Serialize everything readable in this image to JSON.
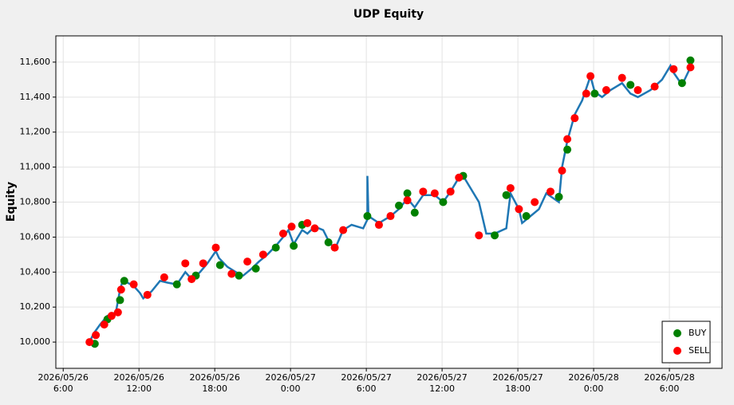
{
  "chart_data": {
    "type": "line",
    "title": "UDP Equity",
    "y_label": "Equity",
    "color": "#1f77b4",
    "grid": true,
    "legend": "lower right",
    "xlim": [
      "2026-05-26 05:25",
      "2026-05-28 10:10"
    ],
    "xticks": [
      {
        "value": "2026-05-26 06:00",
        "label": "2026/05/26\n6:00"
      },
      {
        "value": "2026-05-26 12:00",
        "label": "2026/05/26\n12:00"
      },
      {
        "value": "2026-05-26 18:00",
        "label": "2026/05/26\n18:00"
      },
      {
        "value": "2026-05-27 00:00",
        "label": "2026/05/27\n0:00"
      },
      {
        "value": "2026-05-27 06:00",
        "label": "2026/05/27\n6:00"
      },
      {
        "value": "2026-05-27 12:00",
        "label": "2026/05/27\n12:00"
      },
      {
        "value": "2026-05-27 18:00",
        "label": "2026/05/27\n18:00"
      },
      {
        "value": "2026-05-28 00:00",
        "label": "2026/05/28\n0:00"
      },
      {
        "value": "2026-05-28 06:00",
        "label": "2026/05/28\n6:00"
      }
    ],
    "ylim": [
      9850,
      11750
    ],
    "yticks": [
      {
        "value": 10000,
        "label": "10,000"
      },
      {
        "value": 10200,
        "label": "10,200"
      },
      {
        "value": 10400,
        "label": "10,400"
      },
      {
        "value": 10600,
        "label": "10,600"
      },
      {
        "value": 10800,
        "label": "10,800"
      },
      {
        "value": 11000,
        "label": "11,000"
      },
      {
        "value": 11200,
        "label": "11,200"
      },
      {
        "value": 11400,
        "label": "11,400"
      },
      {
        "value": 11600,
        "label": "11,600"
      }
    ],
    "x": [
      "2026-05-26 08:05",
      "2026-05-26 08:25",
      "2026-05-26 08:55",
      "2026-05-26 09:30",
      "2026-05-26 10:10",
      "2026-05-26 10:30",
      "2026-05-26 10:40",
      "2026-05-26 11:05",
      "2026-05-26 11:35",
      "2026-05-26 12:05",
      "2026-05-26 12:20",
      "2026-05-26 13:00",
      "2026-05-26 13:40",
      "2026-05-26 14:15",
      "2026-05-26 15:00",
      "2026-05-26 15:40",
      "2026-05-26 16:10",
      "2026-05-26 16:50",
      "2026-05-26 17:25",
      "2026-05-26 18:05",
      "2026-05-26 18:20",
      "2026-05-26 19:00",
      "2026-05-26 19:40",
      "2026-05-26 20:15",
      "2026-05-26 20:55",
      "2026-05-26 21:30",
      "2026-05-26 22:10",
      "2026-05-26 22:50",
      "2026-05-26 23:25",
      "2026-05-26 23:50",
      "2026-05-27 00:15",
      "2026-05-27 00:55",
      "2026-05-27 01:20",
      "2026-05-27 01:55",
      "2026-05-27 02:35",
      "2026-05-27 03:00",
      "2026-05-27 03:30",
      "2026-05-27 04:10",
      "2026-05-27 04:50",
      "2026-05-27 05:45",
      "2026-05-27 06:05",
      "2026-05-27 06:05",
      "2026-05-27 06:10",
      "2026-05-27 07:00",
      "2026-05-27 07:55",
      "2026-05-27 08:35",
      "2026-05-27 09:15",
      "2026-05-27 09:50",
      "2026-05-27 10:30",
      "2026-05-27 11:25",
      "2026-05-27 12:05",
      "2026-05-27 12:40",
      "2026-05-27 13:20",
      "2026-05-27 13:40",
      "2026-05-27 14:15",
      "2026-05-27 14:55",
      "2026-05-27 15:30",
      "2026-05-27 16:10",
      "2026-05-27 17:05",
      "2026-05-27 17:25",
      "2026-05-27 18:05",
      "2026-05-27 18:20",
      "2026-05-27 19:00",
      "2026-05-27 19:40",
      "2026-05-27 20:15",
      "2026-05-27 21:15",
      "2026-05-27 21:30",
      "2026-05-27 21:55",
      "2026-05-27 22:30",
      "2026-05-27 23:05",
      "2026-05-27 23:45",
      "2026-05-28 00:05",
      "2026-05-28 00:40",
      "2026-05-28 01:20",
      "2026-05-28 02:15",
      "2026-05-28 02:55",
      "2026-05-28 03:30",
      "2026-05-28 04:30",
      "2026-05-28 05:25",
      "2026-05-28 06:05",
      "2026-05-28 06:20",
      "2026-05-28 07:00",
      "2026-05-28 07:40"
    ],
    "values": [
      10000,
      10050,
      10100,
      10150,
      10170,
      10300,
      10340,
      10340,
      10320,
      10280,
      10250,
      10290,
      10350,
      10340,
      10330,
      10400,
      10360,
      10400,
      10450,
      10520,
      10480,
      10430,
      10400,
      10380,
      10420,
      10460,
      10500,
      10550,
      10600,
      10640,
      10560,
      10640,
      10620,
      10660,
      10640,
      10580,
      10530,
      10640,
      10670,
      10650,
      10700,
      10950,
      10720,
      10680,
      10720,
      10760,
      10820,
      10770,
      10840,
      10840,
      10800,
      10860,
      10940,
      10950,
      10880,
      10800,
      10620,
      10620,
      10650,
      10850,
      10760,
      10680,
      10720,
      10760,
      10850,
      10800,
      11000,
      11150,
      11300,
      11380,
      11520,
      11430,
      11400,
      11440,
      11480,
      11420,
      11400,
      11440,
      11500,
      11580,
      11540,
      11470,
      11570
    ],
    "markers": [
      {
        "name": "BUY",
        "color": "#008000",
        "x": [
          "2026-05-26 08:30",
          "2026-05-26 09:30",
          "2026-05-26 10:30",
          "2026-05-26 10:50",
          "2026-05-26 15:00",
          "2026-05-26 16:30",
          "2026-05-26 18:25",
          "2026-05-26 19:55",
          "2026-05-26 21:15",
          "2026-05-26 22:50",
          "2026-05-27 00:15",
          "2026-05-27 00:55",
          "2026-05-27 03:00",
          "2026-05-27 06:05",
          "2026-05-27 08:35",
          "2026-05-27 09:15",
          "2026-05-27 09:50",
          "2026-05-27 12:05",
          "2026-05-27 13:40",
          "2026-05-27 16:10",
          "2026-05-27 17:05",
          "2026-05-27 18:40",
          "2026-05-27 21:15",
          "2026-05-27 21:55",
          "2026-05-28 00:05",
          "2026-05-28 02:55",
          "2026-05-28 07:00",
          "2026-05-28 07:40"
        ],
        "values": [
          9990,
          10130,
          10240,
          10350,
          10330,
          10380,
          10440,
          10380,
          10420,
          10540,
          10550,
          10670,
          10570,
          10720,
          10780,
          10850,
          10740,
          10800,
          10950,
          10610,
          10840,
          10720,
          10830,
          11100,
          11420,
          11470,
          11480,
          11610
        ]
      },
      {
        "name": "SELL",
        "color": "#ff0000",
        "x": [
          "2026-05-26 08:05",
          "2026-05-26 08:35",
          "2026-05-26 09:15",
          "2026-05-26 09:50",
          "2026-05-26 10:20",
          "2026-05-26 10:35",
          "2026-05-26 11:35",
          "2026-05-26 12:40",
          "2026-05-26 14:00",
          "2026-05-26 15:40",
          "2026-05-26 16:10",
          "2026-05-26 17:05",
          "2026-05-26 18:05",
          "2026-05-26 19:20",
          "2026-05-26 20:35",
          "2026-05-26 21:50",
          "2026-05-26 23:25",
          "2026-05-27 00:05",
          "2026-05-27 01:20",
          "2026-05-27 01:55",
          "2026-05-27 03:30",
          "2026-05-27 04:10",
          "2026-05-27 07:00",
          "2026-05-27 07:55",
          "2026-05-27 09:15",
          "2026-05-27 10:30",
          "2026-05-27 11:25",
          "2026-05-27 12:40",
          "2026-05-27 13:20",
          "2026-05-27 14:55",
          "2026-05-27 17:25",
          "2026-05-27 18:05",
          "2026-05-27 19:20",
          "2026-05-27 20:35",
          "2026-05-27 21:30",
          "2026-05-27 21:55",
          "2026-05-27 22:30",
          "2026-05-27 23:25",
          "2026-05-27 23:45",
          "2026-05-28 01:00",
          "2026-05-28 02:15",
          "2026-05-28 03:30",
          "2026-05-28 04:50",
          "2026-05-28 06:20",
          "2026-05-28 07:40"
        ],
        "values": [
          10000,
          10040,
          10100,
          10150,
          10170,
          10300,
          10330,
          10270,
          10370,
          10450,
          10360,
          10450,
          10540,
          10390,
          10460,
          10500,
          10620,
          10660,
          10680,
          10650,
          10540,
          10640,
          10670,
          10720,
          10810,
          10860,
          10850,
          10860,
          10940,
          10610,
          10880,
          10760,
          10800,
          10860,
          10980,
          11160,
          11280,
          11420,
          11520,
          11440,
          11510,
          11440,
          11460,
          11560,
          11570
        ]
      }
    ]
  }
}
